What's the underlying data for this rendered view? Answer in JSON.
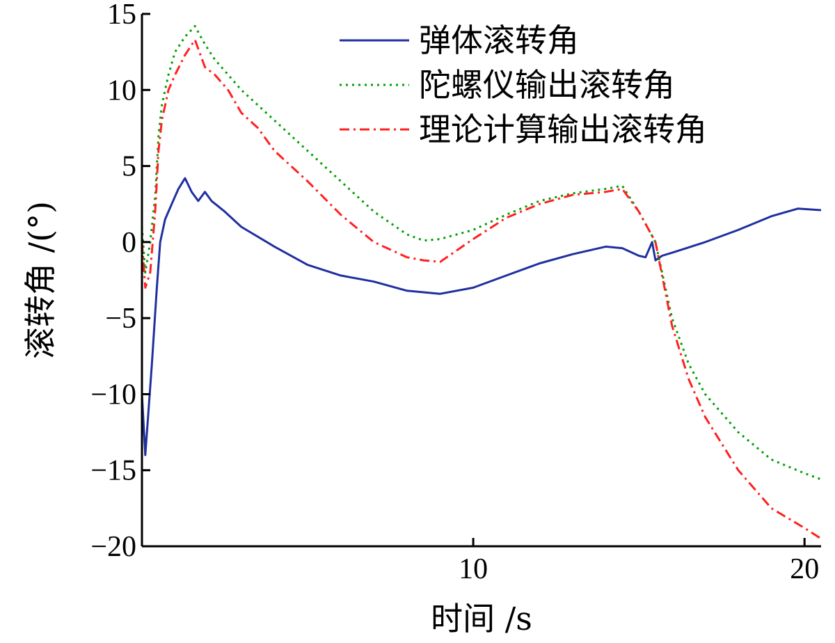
{
  "chart_data": {
    "type": "line",
    "xlabel": "时间 /s",
    "ylabel": "滚转角 /(°)",
    "xlim": [
      0,
      20.5
    ],
    "ylim": [
      -20,
      15
    ],
    "xticks": [
      10,
      20
    ],
    "yticks": [
      -20,
      -15,
      -10,
      -5,
      0,
      5,
      10,
      15
    ],
    "xtick_labels": [
      "10",
      "20"
    ],
    "ytick_labels": [
      "−20",
      "−15",
      "−10",
      "−5",
      "0",
      "5",
      "10",
      "15"
    ],
    "grid": false,
    "legend_position": "top-right",
    "series": [
      {
        "name": "弹体滚转角",
        "color": "#1f2f9f",
        "dash": "solid",
        "x": [
          0,
          0.1,
          0.3,
          0.45,
          0.55,
          0.7,
          0.9,
          1.1,
          1.3,
          1.5,
          1.7,
          1.9,
          2.1,
          2.5,
          3.0,
          4.0,
          5.0,
          6.0,
          7.0,
          8.0,
          9.0,
          10.0,
          11.0,
          12.0,
          13.0,
          14.0,
          14.5,
          15.0,
          15.2,
          15.4,
          15.5,
          15.7,
          16.0,
          17.0,
          18.0,
          19.0,
          19.8,
          20.5
        ],
        "y": [
          -10,
          -14,
          -8,
          -3,
          0,
          1.5,
          2.5,
          3.5,
          4.2,
          3.3,
          2.7,
          3.3,
          2.7,
          2.0,
          1.0,
          -0.3,
          -1.5,
          -2.2,
          -2.6,
          -3.2,
          -3.4,
          -3.0,
          -2.2,
          -1.4,
          -0.8,
          -0.3,
          -0.4,
          -0.9,
          -1.0,
          0,
          -1.2,
          -0.9,
          -0.7,
          0,
          0.8,
          1.7,
          2.2,
          2.1
        ]
      },
      {
        "name": "陀螺仪输出滚转角",
        "color": "#00a000",
        "dash": "dotted",
        "x": [
          0,
          0.1,
          0.25,
          0.4,
          0.5,
          0.6,
          0.8,
          1.0,
          1.3,
          1.6,
          1.9,
          2.2,
          2.6,
          3.0,
          3.5,
          4.0,
          5.0,
          6.0,
          7.0,
          8.0,
          8.5,
          9.0,
          10.0,
          11.0,
          12.0,
          13.0,
          14.0,
          14.5,
          15.0,
          15.5,
          16.0,
          16.5,
          17.0,
          18.0,
          19.0,
          20.0,
          20.5
        ],
        "y": [
          1,
          -2,
          0,
          3,
          7,
          9,
          11,
          12.5,
          13.5,
          14.2,
          13.0,
          12.0,
          11.0,
          10.0,
          9.0,
          8.0,
          6.0,
          4.0,
          2.0,
          0.5,
          0.1,
          0.2,
          0.8,
          1.8,
          2.7,
          3.2,
          3.5,
          3.7,
          2.0,
          0,
          -5.0,
          -8.0,
          -10.0,
          -12.5,
          -14.3,
          -15.2,
          -15.6
        ]
      },
      {
        "name": "理论计算输出滚转角",
        "color": "#ff2020",
        "dash": "dashdot",
        "x": [
          0,
          0.1,
          0.25,
          0.4,
          0.5,
          0.6,
          0.8,
          1.0,
          1.3,
          1.6,
          1.9,
          2.2,
          2.6,
          3.0,
          3.5,
          4.0,
          5.0,
          6.0,
          7.0,
          8.0,
          8.5,
          9.0,
          10.0,
          11.0,
          12.0,
          13.0,
          14.0,
          14.5,
          15.0,
          15.5,
          16.0,
          16.5,
          17.0,
          18.0,
          19.0,
          20.0,
          20.5
        ],
        "y": [
          0,
          -3,
          -2,
          2,
          6,
          8,
          10,
          11,
          12.3,
          13.3,
          11.5,
          11.0,
          10.0,
          8.5,
          7.5,
          6.0,
          4.0,
          1.8,
          0,
          -1.0,
          -1.2,
          -1.3,
          0.2,
          1.6,
          2.5,
          3.1,
          3.3,
          3.5,
          2.0,
          0,
          -5.5,
          -9.0,
          -11.5,
          -15.0,
          -17.5,
          -18.8,
          -19.5
        ]
      }
    ]
  }
}
